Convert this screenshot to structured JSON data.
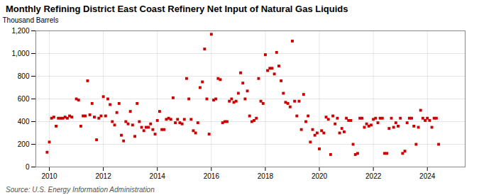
{
  "chart_data": {
    "type": "scatter",
    "title": "Monthly Refining District East Coast Refinery Net Input of Natural Gas Liquids",
    "ylabel": "Thousand Barrels",
    "source": "Source: U.S. Energy Information Administration",
    "color": "#cc0000",
    "marker": "square",
    "grid": true,
    "xlim": [
      2009.5,
      2025.4
    ],
    "xticks": [
      2010,
      2012,
      2014,
      2016,
      2018,
      2020,
      2022,
      2024
    ],
    "ylim": [
      0,
      1200
    ],
    "yticks": [
      0,
      200,
      400,
      600,
      800,
      {
        "value": 1000,
        "label": "1,000"
      },
      {
        "value": 1200,
        "label": "1,200"
      }
    ],
    "x": [
      2009.917,
      2010.0,
      2010.083,
      2010.167,
      2010.25,
      2010.333,
      2010.417,
      2010.5,
      2010.583,
      2010.667,
      2010.75,
      2010.833,
      2011.0,
      2011.083,
      2011.167,
      2011.25,
      2011.333,
      2011.417,
      2011.5,
      2011.583,
      2011.667,
      2011.75,
      2011.833,
      2011.917,
      2012.0,
      2012.083,
      2012.167,
      2012.25,
      2012.333,
      2012.417,
      2012.5,
      2012.583,
      2012.667,
      2012.75,
      2012.833,
      2012.917,
      2013.0,
      2013.083,
      2013.167,
      2013.25,
      2013.333,
      2013.417,
      2013.5,
      2013.583,
      2013.667,
      2013.75,
      2013.833,
      2013.917,
      2014.0,
      2014.083,
      2014.167,
      2014.25,
      2014.333,
      2014.417,
      2014.5,
      2014.583,
      2014.667,
      2014.75,
      2014.833,
      2014.917,
      2015.0,
      2015.083,
      2015.167,
      2015.25,
      2015.333,
      2015.417,
      2015.5,
      2015.583,
      2015.667,
      2015.75,
      2015.833,
      2015.917,
      2016.0,
      2016.083,
      2016.167,
      2016.25,
      2016.333,
      2016.417,
      2016.5,
      2016.583,
      2016.667,
      2016.75,
      2016.833,
      2016.917,
      2017.0,
      2017.083,
      2017.167,
      2017.25,
      2017.333,
      2017.417,
      2017.5,
      2017.583,
      2017.667,
      2017.75,
      2017.833,
      2017.917,
      2018.0,
      2018.083,
      2018.167,
      2018.25,
      2018.333,
      2018.417,
      2018.5,
      2018.583,
      2018.667,
      2018.75,
      2018.833,
      2018.917,
      2019.0,
      2019.083,
      2019.167,
      2019.25,
      2019.333,
      2019.417,
      2019.5,
      2019.583,
      2019.667,
      2019.75,
      2019.833,
      2019.917,
      2020.0,
      2020.083,
      2020.167,
      2020.25,
      2020.333,
      2020.417,
      2020.5,
      2020.583,
      2020.667,
      2020.75,
      2020.833,
      2020.917,
      2021.0,
      2021.083,
      2021.167,
      2021.25,
      2021.333,
      2021.417,
      2021.5,
      2021.583,
      2021.667,
      2021.75,
      2021.833,
      2021.917,
      2022.0,
      2022.083,
      2022.167,
      2022.25,
      2022.333,
      2022.417,
      2022.5,
      2022.583,
      2022.667,
      2022.75,
      2022.833,
      2022.917,
      2023.0,
      2023.083,
      2023.167,
      2023.25,
      2023.333,
      2023.417,
      2023.5,
      2023.583,
      2023.667,
      2023.75,
      2023.833,
      2023.917,
      2024.0,
      2024.083,
      2024.167,
      2024.25,
      2024.333,
      2024.417
    ],
    "values": [
      130,
      220,
      430,
      440,
      360,
      430,
      430,
      430,
      440,
      430,
      450,
      440,
      600,
      590,
      360,
      450,
      450,
      760,
      460,
      560,
      440,
      240,
      430,
      450,
      620,
      450,
      600,
      550,
      400,
      370,
      480,
      560,
      280,
      230,
      400,
      380,
      490,
      370,
      270,
      560,
      400,
      350,
      320,
      350,
      350,
      380,
      330,
      290,
      410,
      490,
      330,
      330,
      420,
      430,
      420,
      610,
      390,
      420,
      390,
      380,
      420,
      780,
      600,
      420,
      320,
      300,
      390,
      700,
      750,
      1040,
      600,
      290,
      1170,
      590,
      600,
      780,
      770,
      390,
      400,
      400,
      580,
      600,
      570,
      580,
      650,
      830,
      740,
      600,
      670,
      450,
      400,
      410,
      430,
      780,
      580,
      560,
      990,
      850,
      870,
      870,
      820,
      1010,
      890,
      760,
      650,
      570,
      560,
      530,
      1110,
      580,
      450,
      580,
      330,
      640,
      400,
      450,
      220,
      330,
      280,
      300,
      160,
      320,
      300,
      440,
      420,
      110,
      450,
      380,
      430,
      300,
      340,
      310,
      430,
      410,
      410,
      200,
      110,
      120,
      430,
      430,
      350,
      380,
      360,
      370,
      420,
      430,
      390,
      430,
      430,
      120,
      120,
      340,
      430,
      350,
      390,
      360,
      430,
      120,
      140,
      390,
      430,
      430,
      360,
      200,
      350,
      500,
      430,
      410,
      430,
      410,
      350,
      430,
      430,
      200
    ]
  }
}
